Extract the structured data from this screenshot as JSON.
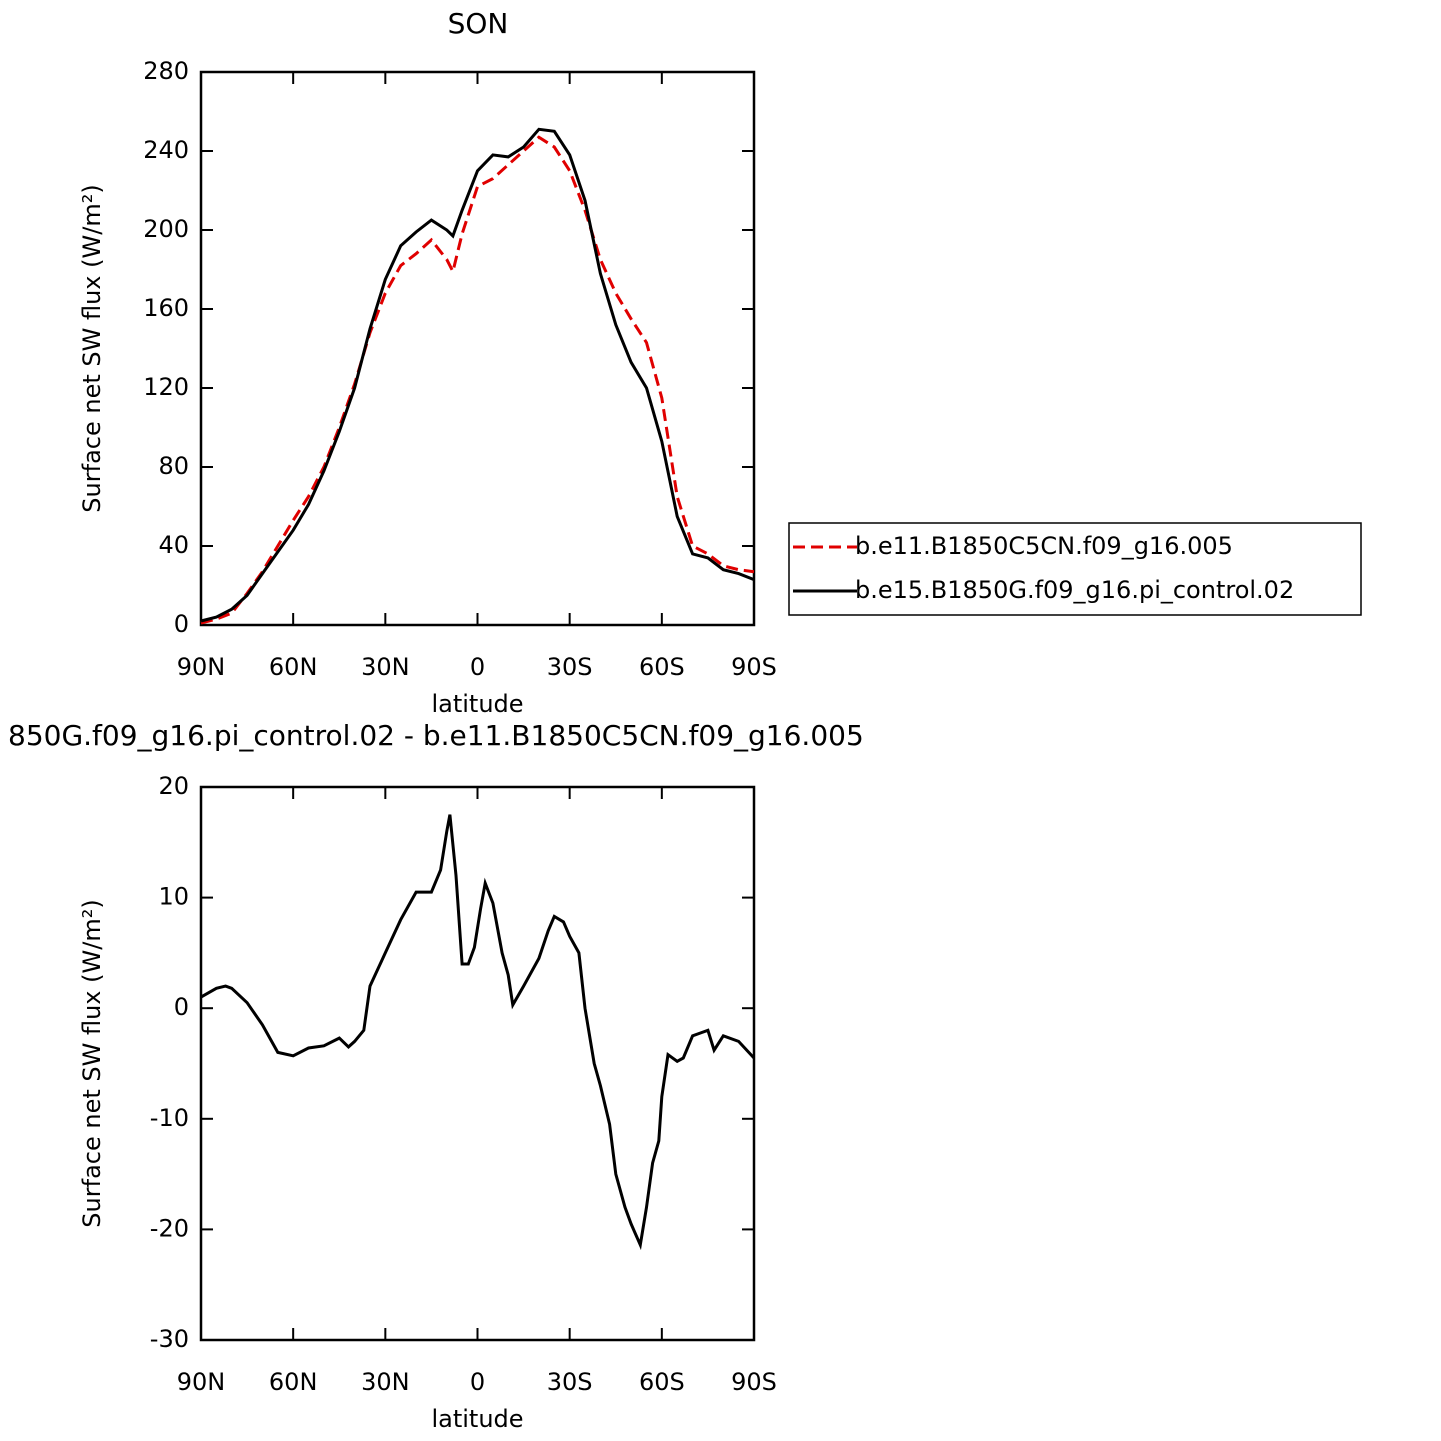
{
  "chart_data": [
    {
      "type": "line",
      "title": "SON",
      "xlabel": "latitude",
      "ylabel": "Surface net SW flux (W/m²)",
      "x": [
        90,
        85,
        80,
        75,
        70,
        65,
        60,
        55,
        50,
        45,
        40,
        35,
        30,
        25,
        20,
        15,
        10,
        8,
        5,
        0,
        -5,
        -10,
        -15,
        -20,
        -25,
        -30,
        -35,
        -40,
        -45,
        -50,
        -55,
        -60,
        -65,
        -70,
        -75,
        -80,
        -85,
        -90
      ],
      "series": [
        {
          "name": "b.e11.B1850C5CN.f09_g16.005",
          "color": "#e00000",
          "line_style": "dashed",
          "values": [
            1,
            3,
            6,
            16,
            27,
            40,
            53,
            65,
            80,
            100,
            122,
            148,
            168,
            182,
            188,
            195,
            185,
            179,
            198,
            222,
            226,
            233,
            240,
            247,
            242,
            230,
            210,
            185,
            168,
            155,
            143,
            115,
            65,
            40,
            36,
            30,
            28,
            27
          ]
        },
        {
          "name": "b.e15.B1850G.f09_g16.pi_control.02",
          "color": "#000000",
          "line_style": "solid",
          "values": [
            2,
            4,
            8,
            15,
            26,
            37,
            48,
            61,
            78,
            98,
            120,
            150,
            175,
            192,
            199,
            205,
            200,
            197,
            210,
            230,
            238,
            237,
            242,
            251,
            250,
            238,
            215,
            178,
            152,
            133,
            120,
            93,
            55,
            36,
            34,
            28,
            26,
            23
          ]
        }
      ],
      "xlim": [
        90,
        -90
      ],
      "xticks": [
        {
          "value": 90,
          "label": "90N"
        },
        {
          "value": 60,
          "label": "60N"
        },
        {
          "value": 30,
          "label": "30N"
        },
        0,
        {
          "value": -30,
          "label": "30S"
        },
        {
          "value": -60,
          "label": "60S"
        },
        {
          "value": -90,
          "label": "90S"
        }
      ],
      "ylim": [
        0,
        280
      ],
      "yticks": [
        0,
        40,
        80,
        120,
        160,
        200,
        240,
        280
      ],
      "legend": "right"
    },
    {
      "type": "line",
      "title": "850G.f09_g16.pi_control.02 - b.e11.B1850C5CN.f09_g16.005",
      "xlabel": "latitude",
      "ylabel": "Surface net SW flux (W/m²)",
      "x": [
        90,
        85,
        82,
        80,
        75,
        70,
        65,
        60,
        55,
        50,
        45,
        42,
        40,
        37,
        35,
        30,
        25,
        20,
        15,
        12,
        10,
        9,
        7,
        5,
        3,
        1,
        -1,
        -2.5,
        -5,
        -8,
        -10,
        -11.5,
        -15,
        -20,
        -23,
        -25,
        -28,
        -30,
        -33,
        -35,
        -38,
        -40,
        -43,
        -45,
        -48,
        -50,
        -53,
        -55,
        -57,
        -59,
        -60,
        -62,
        -65,
        -67,
        -70,
        -73,
        -75,
        -77,
        -80,
        -85,
        -90
      ],
      "series": [
        {
          "color": "#000000",
          "line_style": "solid",
          "values": [
            1,
            1.8,
            2,
            1.8,
            0.5,
            -1.5,
            -4,
            -4.3,
            -3.6,
            -3.4,
            -2.7,
            -3.5,
            -3,
            -2,
            2,
            5,
            8,
            10.5,
            10.5,
            12.5,
            16,
            17.5,
            12,
            4,
            4,
            5.5,
            9,
            11.3,
            9.5,
            5,
            3,
            0.3,
            2,
            4.5,
            7,
            8.3,
            7.8,
            6.5,
            5,
            0,
            -5,
            -7,
            -10.5,
            -15,
            -18,
            -19.5,
            -21.4,
            -18,
            -14,
            -12,
            -8,
            -4.2,
            -4.8,
            -4.5,
            -2.5,
            -2.2,
            -2,
            -3.8,
            -2.5,
            -3,
            -4.5
          ]
        }
      ],
      "xlim": [
        90,
        -90
      ],
      "xticks": [
        {
          "value": 90,
          "label": "90N"
        },
        {
          "value": 60,
          "label": "60N"
        },
        {
          "value": 30,
          "label": "30N"
        },
        0,
        {
          "value": -30,
          "label": "30S"
        },
        {
          "value": -60,
          "label": "60S"
        },
        {
          "value": -90,
          "label": "90S"
        }
      ],
      "ylim": [
        -30,
        20
      ],
      "yticks": [
        -30,
        -20,
        -10,
        0,
        10,
        20
      ]
    }
  ]
}
